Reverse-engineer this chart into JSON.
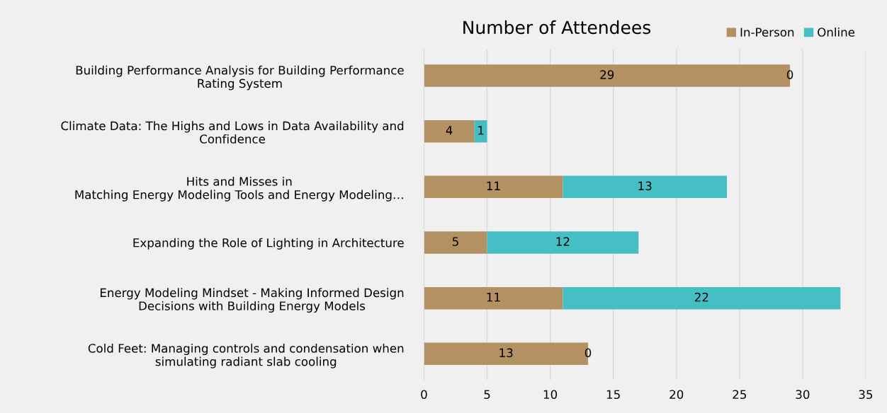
{
  "chart_data": {
    "type": "bar",
    "orientation": "horizontal",
    "stacked": true,
    "title": "Number of Attendees",
    "categories": [
      "Building Performance Analysis for Building Performance\nRating System",
      "Climate Data: The Highs and Lows in Data Availability and\nConfidence",
      "Hits and Misses in\nMatching Energy Modeling Tools and Energy Modeling…",
      "Expanding the Role of Lighting in Architecture",
      "Energy Modeling Mindset - Making Informed Design\nDecisions with Building Energy Models",
      "Cold Feet: Managing controls and condensation when\nsimulating radiant slab cooling"
    ],
    "series": [
      {
        "name": "In-Person",
        "color": "#b39163",
        "values": [
          29,
          4,
          11,
          5,
          11,
          13
        ]
      },
      {
        "name": "Online",
        "color": "#45bfc4",
        "values": [
          0,
          1,
          13,
          12,
          22,
          0
        ]
      }
    ],
    "xlim": [
      0,
      35
    ],
    "xticks": [
      0,
      5,
      10,
      15,
      20,
      25,
      30,
      35
    ],
    "grid": "x",
    "legend": "top right",
    "data_labels": true
  }
}
